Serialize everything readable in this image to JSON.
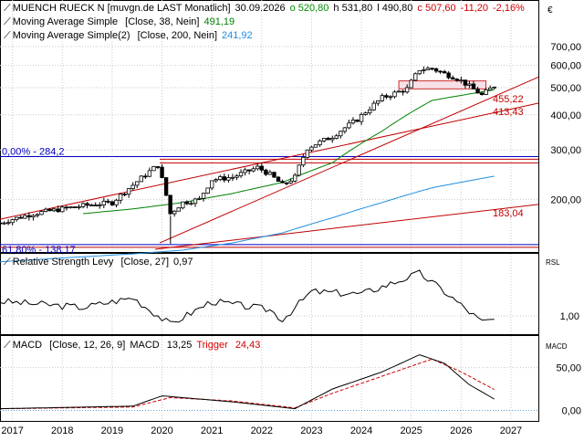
{
  "header": {
    "instrument": "MUENCH RUECK N [muvgn.de LAST Monatlich]",
    "date": "30.09.2026",
    "open": "o 520,80",
    "high": "h 531,80",
    "low": "l 490,80",
    "close": "c 507,60",
    "change": "-11,20",
    "change_pct": "-2,16%",
    "currency": "€",
    "colors": {
      "open": "#00a000",
      "close": "#d00000",
      "neutral": "#000000"
    }
  },
  "indicators": {
    "sma38": {
      "label": "Moving Average Simple",
      "params": "[Close, 38, Nein]",
      "value": "491,19",
      "color": "#008000"
    },
    "sma200": {
      "label": "Moving Average Simple(2)",
      "params": "[Close, 200, Nein]",
      "value": "241,92",
      "color": "#1f8fdf"
    }
  },
  "rsl": {
    "title": "Relative Strength Levy",
    "params": "[Close, 27]",
    "value": "0,97",
    "axis_label": "RSL",
    "tick": "1,00"
  },
  "macd": {
    "title": "MACD",
    "params": "[Close, 12, 26, 9]",
    "macd_label": "MACD",
    "macd_value": "13,25",
    "trigger_label": "Trigger",
    "trigger_value": "24,43",
    "axis_label": "MACD",
    "ticks": [
      "50,00",
      "0,00"
    ]
  },
  "annotations": {
    "fib_0": "0,00% - 284,2",
    "fib_618": "61,80% - 138,17",
    "level_455": "455,22",
    "level_413": "413,43",
    "level_183": "183,04"
  },
  "chart_data": [
    {
      "type": "candlestick",
      "title": "MUENCH RUECK N",
      "scale": "log",
      "y_ticks": [
        "700,00",
        "600,00",
        "500,00",
        "400,00",
        "300,00",
        "200,00"
      ],
      "y_tick_values": [
        700,
        600,
        500,
        400,
        300,
        200
      ],
      "x_ticks": [
        "2017",
        "2018",
        "2019",
        "2020",
        "2021",
        "2022",
        "2023",
        "2024",
        "2025",
        "2026",
        "2027"
      ],
      "close_series_approx": [
        [
          "2016-10",
          165
        ],
        [
          "2017-01",
          170
        ],
        [
          "2017-06",
          178
        ],
        [
          "2018-01",
          185
        ],
        [
          "2018-06",
          190
        ],
        [
          "2019-01",
          195
        ],
        [
          "2019-06",
          225
        ],
        [
          "2019-12",
          265
        ],
        [
          "2020-03",
          178
        ],
        [
          "2020-06",
          195
        ],
        [
          "2020-10",
          200
        ],
        [
          "2021-01",
          235
        ],
        [
          "2021-06",
          240
        ],
        [
          "2021-12",
          260
        ],
        [
          "2022-03",
          245
        ],
        [
          "2022-06",
          225
        ],
        [
          "2022-09",
          240
        ],
        [
          "2022-12",
          305
        ],
        [
          "2023-06",
          335
        ],
        [
          "2023-12",
          385
        ],
        [
          "2024-06",
          460
        ],
        [
          "2024-12",
          495
        ],
        [
          "2025-03",
          580
        ],
        [
          "2025-06",
          585
        ],
        [
          "2025-09",
          560
        ],
        [
          "2025-12",
          540
        ],
        [
          "2026-03",
          505
        ],
        [
          "2026-06",
          470
        ],
        [
          "2026-09",
          507.6
        ]
      ],
      "moving_average_38_approx": [
        [
          "2018-06",
          178
        ],
        [
          "2019-06",
          185
        ],
        [
          "2020-06",
          195
        ],
        [
          "2021-06",
          210
        ],
        [
          "2022-06",
          230
        ],
        [
          "2023-06",
          270
        ],
        [
          "2024-06",
          350
        ],
        [
          "2025-06",
          450
        ],
        [
          "2026-09",
          491.19
        ]
      ],
      "moving_average_200_approx": [
        [
          "2016-10",
          120
        ],
        [
          "2018-06",
          125
        ],
        [
          "2019-06",
          128
        ],
        [
          "2020-06",
          132
        ],
        [
          "2021-06",
          140
        ],
        [
          "2022-06",
          152
        ],
        [
          "2023-06",
          172
        ],
        [
          "2024-06",
          195
        ],
        [
          "2025-06",
          220
        ],
        [
          "2026-09",
          241.92
        ]
      ],
      "levels": [
        284.2,
        138.17,
        455.22,
        413.43,
        183.04
      ]
    },
    {
      "type": "line",
      "title": "Relative Strength Levy",
      "y_ticks": [
        "1,00"
      ],
      "series_approx": [
        [
          "2016-10",
          1.12
        ],
        [
          "2017-06",
          1.1
        ],
        [
          "2018-06",
          1.07
        ],
        [
          "2019-06",
          1.15
        ],
        [
          "2020-03",
          0.93
        ],
        [
          "2021-01",
          1.12
        ],
        [
          "2022-03",
          1.05
        ],
        [
          "2022-06",
          0.97
        ],
        [
          "2023-01",
          1.2
        ],
        [
          "2024-01",
          1.18
        ],
        [
          "2025-03",
          1.35
        ],
        [
          "2025-09",
          1.2
        ],
        [
          "2026-06",
          0.95
        ],
        [
          "2026-09",
          0.97
        ]
      ]
    },
    {
      "type": "line",
      "title": "MACD",
      "y_ticks": [
        "50,00",
        "0,00"
      ],
      "series": [
        {
          "name": "MACD",
          "points_approx": [
            [
              "2016-10",
              2
            ],
            [
              "2019-06",
              5
            ],
            [
              "2020-01",
              17
            ],
            [
              "2021-06",
              10
            ],
            [
              "2022-09",
              2
            ],
            [
              "2023-06",
              25
            ],
            [
              "2024-06",
              45
            ],
            [
              "2025-03",
              65
            ],
            [
              "2025-09",
              55
            ],
            [
              "2026-03",
              30
            ],
            [
              "2026-09",
              13.25
            ]
          ]
        },
        {
          "name": "Trigger",
          "points_approx": [
            [
              "2016-10",
              2
            ],
            [
              "2019-06",
              4
            ],
            [
              "2020-03",
              15
            ],
            [
              "2021-06",
              11
            ],
            [
              "2022-09",
              3
            ],
            [
              "2023-06",
              20
            ],
            [
              "2024-06",
              40
            ],
            [
              "2025-06",
              60
            ],
            [
              "2026-01",
              45
            ],
            [
              "2026-09",
              24.43
            ]
          ]
        }
      ]
    }
  ]
}
